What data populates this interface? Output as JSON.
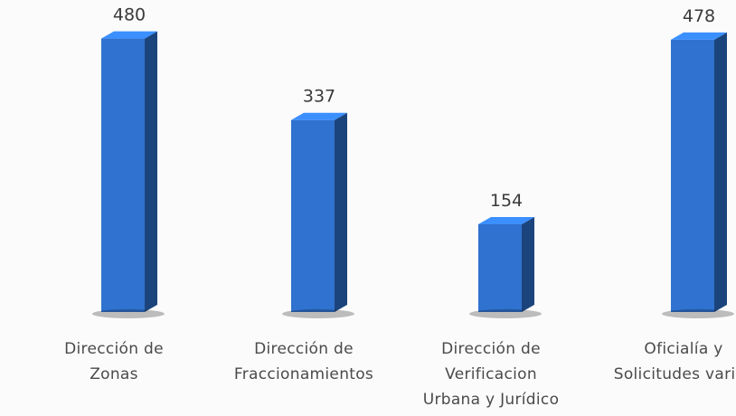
{
  "chart_data": {
    "type": "bar3d",
    "categories": [
      [
        "Dirección de",
        "Zonas"
      ],
      [
        "Dirección de",
        "Fraccionamientos"
      ],
      [
        "Dirección de",
        "Verificacion",
        "Urbana y Jurídico"
      ],
      [
        "Oficialía y",
        "Solicitudes varias"
      ]
    ],
    "values": [
      480,
      337,
      154,
      478
    ],
    "color": "#2f72cf"
  }
}
